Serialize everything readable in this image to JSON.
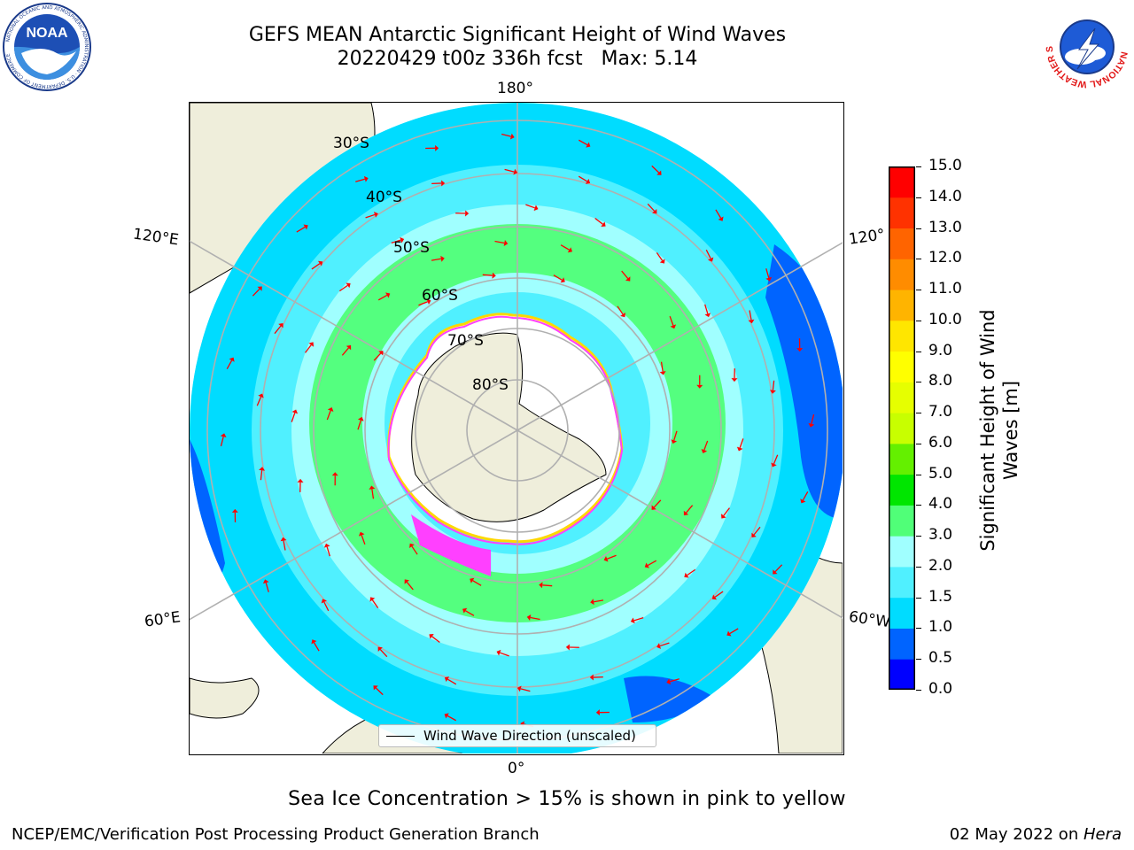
{
  "header": {
    "title_line1": "GEFS MEAN Antarctic Significant Height of Wind Waves",
    "title_line2": "20220429 t00z 336h fcst   Max: 5.14"
  },
  "logos": {
    "left": {
      "name": "NOAA",
      "text": "NOAA",
      "ring_text": "NATIONAL OCEANIC AND ATMOSPHERIC ADMINISTRATION · U.S. DEPARTMENT OF COMMERCE"
    },
    "right": {
      "name": "National Weather Service",
      "ring_text": "NATIONAL WEATHER SERVICE"
    }
  },
  "map": {
    "projection": "south polar stereographic",
    "longitude_labels": {
      "top": "180°",
      "bottom": "0°",
      "upper_left": "120°E",
      "lower_left": "60°E",
      "upper_right": "120°",
      "lower_right": "60°W"
    },
    "latitude_labels": [
      "30°S",
      "40°S",
      "50°S",
      "60°S",
      "70°S",
      "80°S"
    ],
    "legend_text": "Wind Wave Direction (unscaled)",
    "colors": {
      "land": "#efeedb",
      "arrow": "#ff0000",
      "ice_pink": "#ff40ff",
      "ice_yellow": "#ffd700",
      "graticule": "#b0b0b0"
    }
  },
  "colorbar": {
    "label_line1": "Significant Height of Wind",
    "label_line2": "Waves [m]",
    "ticks": [
      "0.0",
      "0.5",
      "1.0",
      "1.5",
      "2.0",
      "3.0",
      "4.0",
      "5.0",
      "6.0",
      "7.0",
      "8.0",
      "9.0",
      "10.0",
      "11.0",
      "12.0",
      "13.0",
      "14.0",
      "15.0"
    ],
    "colors": [
      "#0000ff",
      "#0064ff",
      "#00dcff",
      "#50f0ff",
      "#a0ffff",
      "#50ff78",
      "#00e600",
      "#64f000",
      "#c8ff00",
      "#e6ff00",
      "#ffff00",
      "#ffe600",
      "#ffb400",
      "#ff8c00",
      "#ff6400",
      "#ff3200",
      "#ff0000"
    ]
  },
  "footer": {
    "note": "Sea Ice Concentration > 15% is shown in pink to yellow",
    "credit": "NCEP/EMC/Verification Post Processing Product Generation Branch",
    "date": "02 May 2022 on ",
    "machine": "Hera"
  }
}
